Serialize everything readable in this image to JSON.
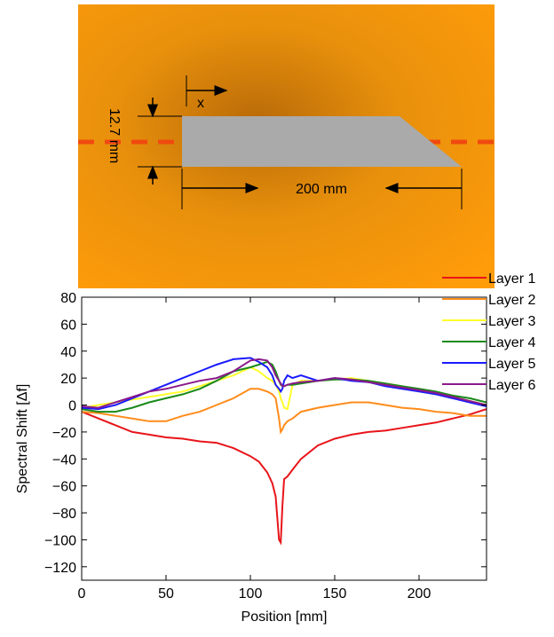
{
  "diagram": {
    "x_label": "x",
    "thickness_label": "12.7 mm",
    "length_label": "200 mm"
  },
  "chart_data": {
    "type": "line",
    "x_label": "Position [mm]",
    "y_label": "Spectral Shift [Δf]",
    "x": [
      0,
      10,
      20,
      30,
      40,
      50,
      60,
      70,
      80,
      90,
      100,
      105,
      110,
      113,
      115,
      117,
      118,
      119,
      120,
      122,
      125,
      130,
      140,
      150,
      160,
      170,
      180,
      190,
      200,
      210,
      220,
      230,
      240
    ],
    "series": [
      {
        "name": "Layer 1",
        "color": "#e8151a",
        "values": [
          -5,
          -10,
          -15,
          -20,
          -22,
          -24,
          -25,
          -27,
          -28,
          -32,
          -38,
          -42,
          -50,
          -58,
          -68,
          -100,
          -102,
          -75,
          -55,
          -53,
          -48,
          -40,
          -30,
          -25,
          -22,
          -20,
          -19,
          -17,
          -15,
          -13,
          -10,
          -7,
          -3
        ]
      },
      {
        "name": "Layer 2",
        "color": "#ff8c1a",
        "values": [
          -5,
          -6,
          -8,
          -10,
          -12,
          -12,
          -8,
          -5,
          0,
          5,
          12,
          12,
          10,
          8,
          5,
          -10,
          -20,
          -18,
          -15,
          -12,
          -10,
          -5,
          -2,
          0,
          2,
          2,
          0,
          -2,
          -3,
          -5,
          -6,
          -8,
          -8
        ]
      },
      {
        "name": "Layer 3",
        "color": "#ffff2a",
        "values": [
          -2,
          0,
          2,
          4,
          6,
          8,
          10,
          14,
          18,
          22,
          28,
          25,
          20,
          18,
          15,
          10,
          5,
          2,
          -2,
          -3,
          15,
          18,
          18,
          19,
          20,
          18,
          16,
          14,
          10,
          8,
          6,
          3,
          0
        ]
      },
      {
        "name": "Layer 4",
        "color": "#1a8a1a",
        "values": [
          -3,
          -5,
          -5,
          -2,
          2,
          5,
          8,
          12,
          18,
          25,
          28,
          30,
          32,
          30,
          25,
          18,
          15,
          14,
          14,
          15,
          15,
          16,
          18,
          19,
          19,
          18,
          16,
          14,
          12,
          10,
          7,
          5,
          2
        ]
      },
      {
        "name": "Layer 5",
        "color": "#1a1aff",
        "values": [
          -2,
          -3,
          0,
          5,
          10,
          15,
          20,
          25,
          30,
          34,
          35,
          32,
          28,
          22,
          15,
          12,
          10,
          12,
          18,
          22,
          20,
          22,
          18,
          20,
          18,
          17,
          14,
          12,
          10,
          8,
          5,
          2,
          -1
        ]
      },
      {
        "name": "Layer 6",
        "color": "#8a1a8a",
        "values": [
          -1,
          -2,
          2,
          6,
          10,
          12,
          15,
          18,
          20,
          25,
          33,
          34,
          33,
          28,
          22,
          18,
          16,
          14,
          14,
          15,
          16,
          17,
          18,
          20,
          19,
          17,
          15,
          13,
          11,
          9,
          6,
          3,
          0
        ]
      }
    ],
    "xlim": [
      0,
      240
    ],
    "xticks": [
      0,
      50,
      100,
      150,
      200
    ],
    "ylim": [
      -130,
      80
    ],
    "yticks": [
      {
        "value": -120,
        "label": "−120"
      },
      {
        "value": -100,
        "label": "−100"
      },
      {
        "value": -80,
        "label": "−80"
      },
      {
        "value": -60,
        "label": "−60"
      },
      {
        "value": -40,
        "label": "−40"
      },
      {
        "value": -20,
        "label": "−20"
      },
      0,
      20,
      40,
      60,
      80
    ],
    "legend": "top-right"
  }
}
